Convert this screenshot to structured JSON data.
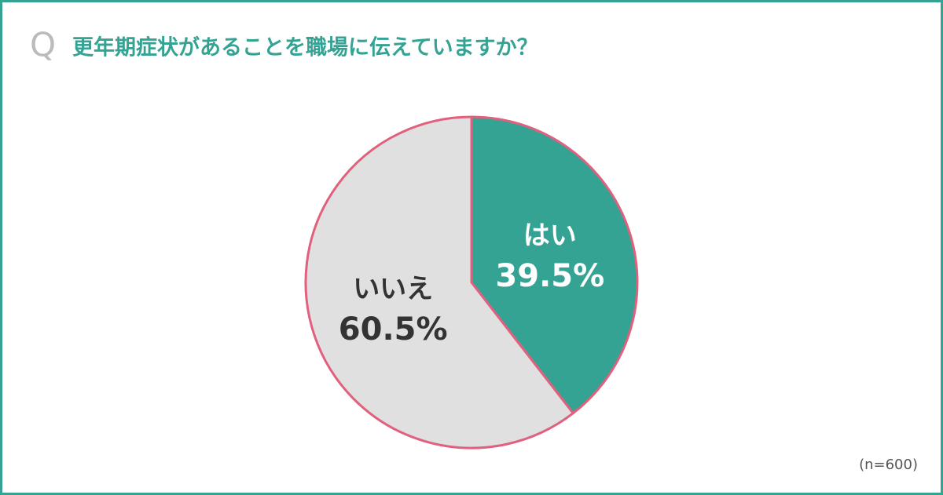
{
  "chart_data": {
    "type": "pie",
    "marker": "Q",
    "title": "更年期症状があることを職場に伝えていますか？",
    "note": "(n=600)",
    "categories": [
      "はい",
      "いいえ"
    ],
    "values": [
      39.5,
      60.5
    ],
    "value_labels": [
      "39.5%",
      "60.5%"
    ],
    "colors": [
      "#34a394",
      "#e0e0e0"
    ],
    "label_colors": [
      "#ffffff",
      "#333333"
    ],
    "edge_color": "#e0607e"
  }
}
